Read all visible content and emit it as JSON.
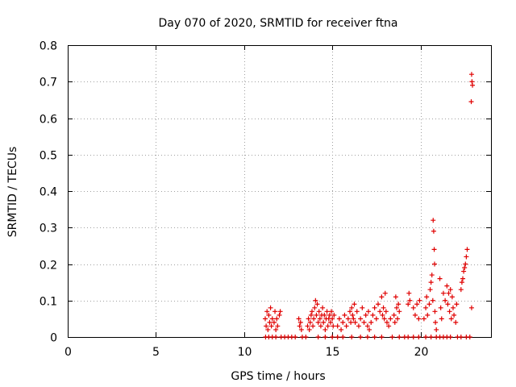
{
  "chart_data": {
    "type": "scatter",
    "title": "Day 070 of 2020, SRMTID for receiver ftna",
    "xlabel": "GPS time / hours",
    "ylabel": "SRMTID / TECUs",
    "xlim": [
      0,
      24
    ],
    "ylim": [
      0,
      0.8
    ],
    "xticks": [
      0,
      5,
      10,
      15,
      20
    ],
    "xtick_labels": [
      "0",
      "5",
      "10",
      "15",
      "20"
    ],
    "yticks": [
      0,
      0.1,
      0.2,
      0.3,
      0.4,
      0.5,
      0.6,
      0.7,
      0.8
    ],
    "ytick_labels": [
      "0",
      "0.1",
      "0.2",
      "0.3",
      "0.4",
      "0.5",
      "0.6",
      "0.7",
      "0.8"
    ],
    "grid": true,
    "marker": "+",
    "series": [
      {
        "name": "SRMTID",
        "color": "#e00000",
        "points": [
          [
            11.2,
            0.05
          ],
          [
            11.25,
            0.03
          ],
          [
            11.3,
            0.07
          ],
          [
            11.35,
            0.02
          ],
          [
            11.4,
            0.06
          ],
          [
            11.45,
            0.04
          ],
          [
            11.5,
            0.08
          ],
          [
            11.55,
            0.03
          ],
          [
            11.6,
            0.05
          ],
          [
            11.7,
            0.04
          ],
          [
            11.75,
            0.07
          ],
          [
            11.8,
            0.02
          ],
          [
            11.85,
            0.05
          ],
          [
            11.9,
            0.03
          ],
          [
            12.0,
            0.06
          ],
          [
            12.05,
            0.07
          ],
          [
            11.22,
            0.0
          ],
          [
            11.4,
            0.0
          ],
          [
            11.6,
            0.0
          ],
          [
            11.8,
            0.0
          ],
          [
            12.1,
            0.0
          ],
          [
            12.3,
            0.0
          ],
          [
            12.5,
            0.0
          ],
          [
            12.7,
            0.0
          ],
          [
            12.9,
            0.0
          ],
          [
            13.1,
            0.05
          ],
          [
            13.15,
            0.03
          ],
          [
            13.2,
            0.04
          ],
          [
            13.25,
            0.02
          ],
          [
            13.3,
            0.0
          ],
          [
            13.5,
            0.0
          ],
          [
            13.6,
            0.03
          ],
          [
            13.65,
            0.05
          ],
          [
            13.7,
            0.02
          ],
          [
            13.75,
            0.04
          ],
          [
            13.8,
            0.06
          ],
          [
            13.85,
            0.07
          ],
          [
            13.9,
            0.03
          ],
          [
            13.95,
            0.05
          ],
          [
            14.0,
            0.08
          ],
          [
            14.05,
            0.1
          ],
          [
            14.1,
            0.06
          ],
          [
            14.15,
            0.09
          ],
          [
            14.2,
            0.04
          ],
          [
            14.25,
            0.07
          ],
          [
            14.3,
            0.05
          ],
          [
            14.35,
            0.03
          ],
          [
            14.4,
            0.06
          ],
          [
            14.45,
            0.08
          ],
          [
            14.5,
            0.04
          ],
          [
            14.55,
            0.06
          ],
          [
            14.6,
            0.02
          ],
          [
            14.65,
            0.05
          ],
          [
            14.7,
            0.07
          ],
          [
            14.75,
            0.03
          ],
          [
            14.8,
            0.05
          ],
          [
            14.85,
            0.06
          ],
          [
            14.9,
            0.04
          ],
          [
            14.95,
            0.07
          ],
          [
            15.0,
            0.05
          ],
          [
            15.05,
            0.03
          ],
          [
            15.1,
            0.06
          ],
          [
            14.2,
            0.0
          ],
          [
            14.6,
            0.0
          ],
          [
            15.0,
            0.0
          ],
          [
            15.3,
            0.0
          ],
          [
            15.6,
            0.0
          ],
          [
            15.3,
            0.03
          ],
          [
            15.4,
            0.05
          ],
          [
            15.5,
            0.02
          ],
          [
            15.6,
            0.04
          ],
          [
            15.7,
            0.06
          ],
          [
            15.8,
            0.03
          ],
          [
            15.9,
            0.05
          ],
          [
            16.0,
            0.07
          ],
          [
            16.05,
            0.04
          ],
          [
            16.1,
            0.08
          ],
          [
            16.15,
            0.06
          ],
          [
            16.2,
            0.05
          ],
          [
            16.25,
            0.09
          ],
          [
            16.3,
            0.04
          ],
          [
            16.4,
            0.07
          ],
          [
            16.5,
            0.03
          ],
          [
            16.6,
            0.05
          ],
          [
            16.7,
            0.08
          ],
          [
            16.8,
            0.04
          ],
          [
            16.9,
            0.06
          ],
          [
            17.0,
            0.03
          ],
          [
            17.05,
            0.07
          ],
          [
            17.1,
            0.02
          ],
          [
            16.1,
            0.0
          ],
          [
            16.6,
            0.0
          ],
          [
            17.0,
            0.0
          ],
          [
            17.4,
            0.0
          ],
          [
            17.8,
            0.0
          ],
          [
            17.2,
            0.04
          ],
          [
            17.3,
            0.06
          ],
          [
            17.4,
            0.08
          ],
          [
            17.5,
            0.05
          ],
          [
            17.6,
            0.09
          ],
          [
            17.7,
            0.07
          ],
          [
            17.8,
            0.11
          ],
          [
            17.85,
            0.06
          ],
          [
            17.9,
            0.08
          ],
          [
            17.95,
            0.05
          ],
          [
            18.0,
            0.12
          ],
          [
            18.05,
            0.07
          ],
          [
            18.1,
            0.04
          ],
          [
            18.2,
            0.03
          ],
          [
            18.3,
            0.05
          ],
          [
            18.5,
            0.06
          ],
          [
            18.55,
            0.04
          ],
          [
            18.6,
            0.11
          ],
          [
            18.65,
            0.08
          ],
          [
            18.7,
            0.05
          ],
          [
            18.75,
            0.09
          ],
          [
            18.8,
            0.07
          ],
          [
            18.4,
            0.0
          ],
          [
            18.8,
            0.0
          ],
          [
            19.1,
            0.0
          ],
          [
            19.3,
            0.0
          ],
          [
            19.6,
            0.0
          ],
          [
            19.9,
            0.0
          ],
          [
            19.3,
            0.09
          ],
          [
            19.35,
            0.12
          ],
          [
            19.4,
            0.1
          ],
          [
            19.6,
            0.08
          ],
          [
            19.7,
            0.06
          ],
          [
            19.8,
            0.09
          ],
          [
            19.9,
            0.05
          ],
          [
            19.95,
            0.1
          ],
          [
            20.2,
            0.05
          ],
          [
            20.3,
            0.08
          ],
          [
            20.35,
            0.11
          ],
          [
            20.4,
            0.06
          ],
          [
            20.5,
            0.09
          ],
          [
            20.55,
            0.13
          ],
          [
            20.6,
            0.15
          ],
          [
            20.65,
            0.17
          ],
          [
            20.7,
            0.1
          ],
          [
            20.72,
            0.32
          ],
          [
            20.75,
            0.29
          ],
          [
            20.78,
            0.24
          ],
          [
            20.8,
            0.2
          ],
          [
            20.82,
            0.07
          ],
          [
            20.85,
            0.04
          ],
          [
            20.9,
            0.02
          ],
          [
            20.3,
            0.0
          ],
          [
            20.6,
            0.0
          ],
          [
            20.9,
            0.0
          ],
          [
            21.1,
            0.0
          ],
          [
            21.3,
            0.0
          ],
          [
            21.5,
            0.0
          ],
          [
            21.7,
            0.0
          ],
          [
            21.1,
            0.16
          ],
          [
            21.15,
            0.08
          ],
          [
            21.2,
            0.05
          ],
          [
            21.3,
            0.12
          ],
          [
            21.4,
            0.1
          ],
          [
            21.5,
            0.14
          ],
          [
            21.55,
            0.09
          ],
          [
            21.6,
            0.12
          ],
          [
            21.65,
            0.07
          ],
          [
            21.7,
            0.13
          ],
          [
            21.75,
            0.05
          ],
          [
            21.8,
            0.11
          ],
          [
            21.85,
            0.08
          ],
          [
            21.9,
            0.06
          ],
          [
            22.0,
            0.04
          ],
          [
            22.05,
            0.09
          ],
          [
            22.1,
            0.0
          ],
          [
            22.3,
            0.0
          ],
          [
            22.6,
            0.0
          ],
          [
            22.8,
            0.0
          ],
          [
            22.3,
            0.13
          ],
          [
            22.35,
            0.15
          ],
          [
            22.4,
            0.16
          ],
          [
            22.45,
            0.18
          ],
          [
            22.5,
            0.19
          ],
          [
            22.55,
            0.2
          ],
          [
            22.6,
            0.22
          ],
          [
            22.65,
            0.24
          ],
          [
            22.9,
            0.72
          ],
          [
            22.92,
            0.7
          ],
          [
            22.95,
            0.69
          ],
          [
            22.88,
            0.645
          ],
          [
            22.9,
            0.08
          ]
        ]
      }
    ]
  }
}
